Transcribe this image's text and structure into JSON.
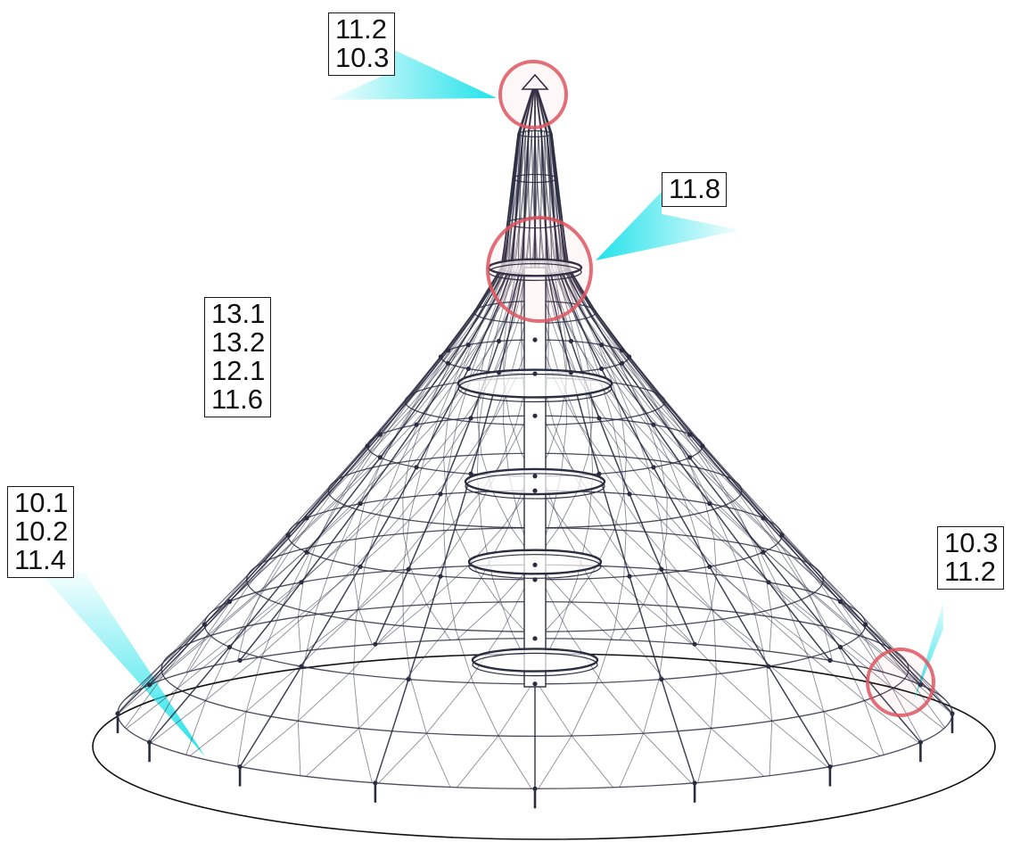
{
  "colors": {
    "callout": "#2ee6ee",
    "highlight_ring": "#e05560",
    "rope": "#2b2d42",
    "ground": "#111111"
  },
  "labels": {
    "top": [
      "11.2",
      "10.3"
    ],
    "upper_ring": [
      "11.8"
    ],
    "middle_left": [
      "13.1",
      "13.2",
      "12.1",
      "11.6"
    ],
    "base_left": [
      "10.1",
      "10.2",
      "11.4"
    ],
    "base_right": [
      "10.3",
      "11.2"
    ]
  }
}
